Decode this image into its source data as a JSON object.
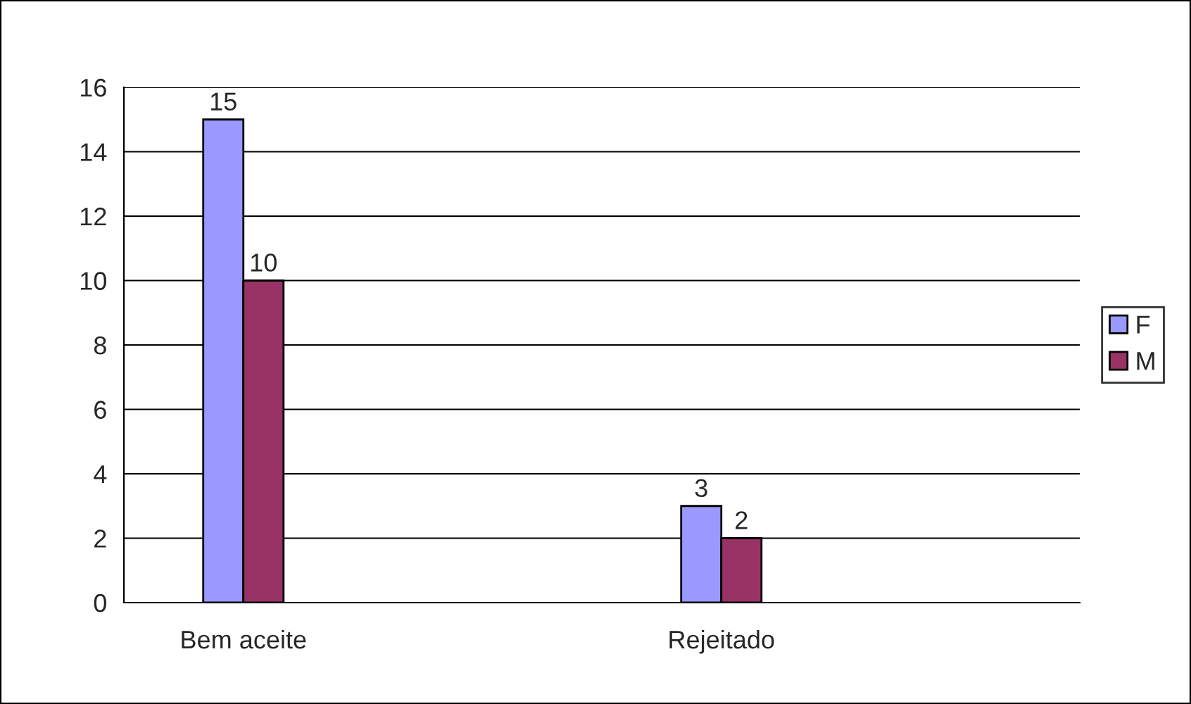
{
  "chart_data": {
    "type": "bar",
    "categories": [
      "Bem aceite",
      null,
      "Rejeitado",
      null
    ],
    "series": [
      {
        "name": "F",
        "color": "#9999ff",
        "values": [
          15,
          null,
          3,
          null
        ]
      },
      {
        "name": "M",
        "color": "#993366",
        "values": [
          10,
          null,
          2,
          null
        ]
      }
    ],
    "ylim": [
      0,
      16
    ],
    "yticks": [
      0,
      2,
      4,
      6,
      8,
      10,
      12,
      14,
      16
    ],
    "grid": "y",
    "legend": "right",
    "data_labels": true
  }
}
